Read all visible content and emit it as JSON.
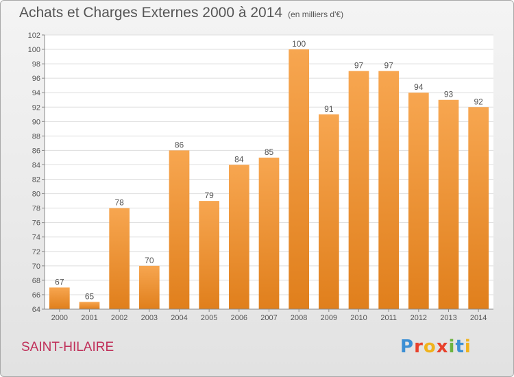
{
  "header": {
    "title": "Achats et Charges Externes 2000 à 2014",
    "unit": "(en milliers d'€)"
  },
  "footer": {
    "place": "SAINT-HILAIRE",
    "logo": [
      {
        "char": "P",
        "color": "#3b8fd4"
      },
      {
        "char": "r",
        "color": "#e8412c"
      },
      {
        "char": "o",
        "color": "#f0b21b"
      },
      {
        "char": "x",
        "color": "#e8412c"
      },
      {
        "char": "i",
        "color": "#6cb33f"
      },
      {
        "char": "t",
        "color": "#3b8fd4"
      },
      {
        "char": "i",
        "color": "#f0b21b"
      }
    ]
  },
  "chart_data": {
    "type": "bar",
    "title": "Achats et Charges Externes 2000 à 2014",
    "subtitle": "(en milliers d'€)",
    "xlabel": "",
    "ylabel": "",
    "categories": [
      "2000",
      "2001",
      "2002",
      "2003",
      "2004",
      "2005",
      "2006",
      "2007",
      "2008",
      "2009",
      "2010",
      "2011",
      "2012",
      "2013",
      "2014"
    ],
    "values": [
      67,
      65,
      78,
      70,
      86,
      79,
      84,
      85,
      100,
      91,
      97,
      97,
      94,
      93,
      92
    ],
    "ylim": [
      64,
      102
    ],
    "yticks": [
      64,
      66,
      68,
      70,
      72,
      74,
      76,
      78,
      80,
      82,
      84,
      86,
      88,
      90,
      92,
      94,
      96,
      98,
      100,
      102
    ],
    "grid": true,
    "legend": "none",
    "bar_color_top": "#f7a650",
    "bar_color_bottom": "#e07f1c"
  }
}
